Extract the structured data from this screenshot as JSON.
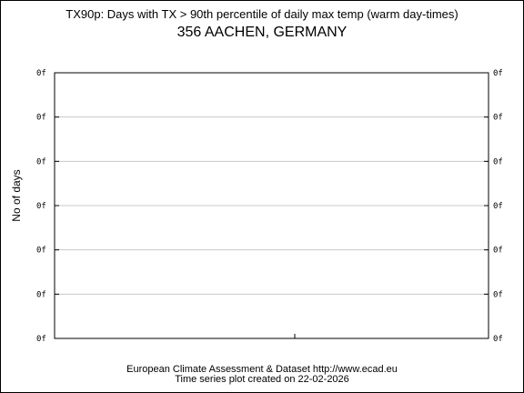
{
  "chart_data": {
    "type": "line",
    "title": "TX90p: Days with TX > 90th percentile of daily max temp (warm day-times)",
    "subtitle": "356 AACHEN, GERMANY",
    "ylabel": "No of days",
    "xlabel": "",
    "y_tick_labels": [
      "0f",
      "0f",
      "0f",
      "0f",
      "0f",
      "0f",
      "0f"
    ],
    "y_tick_labels_right": [
      "0f",
      "0f",
      "0f",
      "0f",
      "0f",
      "0f",
      "0f"
    ],
    "x_tick_labels": [],
    "series": [],
    "grid": true,
    "legend": "none"
  },
  "footer": {
    "line1": "European Climate Assessment & Dataset  http://www.ecad.eu",
    "line2": "Time series plot created on 22-02-2026"
  },
  "colors": {
    "axis": "#000000",
    "grid": "#c8c8c8",
    "background": "#ffffff"
  }
}
